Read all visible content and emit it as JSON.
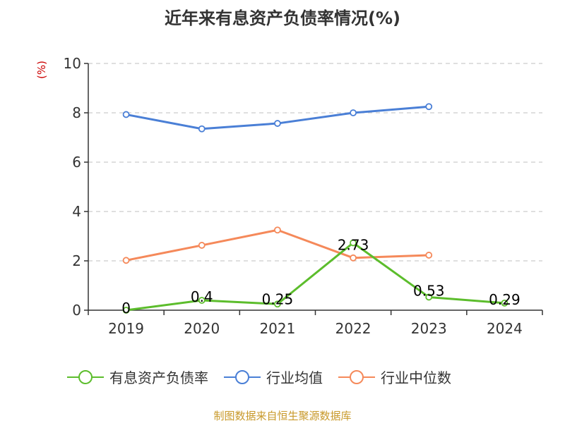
{
  "chart_data": {
    "type": "line",
    "title": "近年来有息资产负债率情况(%)",
    "ylabel": "(%)",
    "xlabel": "",
    "categories": [
      "2019",
      "2020",
      "2021",
      "2022",
      "2023",
      "2024"
    ],
    "ylim": [
      0,
      10
    ],
    "yticks": [
      0,
      2,
      4,
      6,
      8,
      10
    ],
    "grid": true,
    "legend_position": "bottom",
    "series": [
      {
        "name": "有息资产负债率",
        "color": "#5cbd2c",
        "values": [
          0,
          0.4,
          0.25,
          2.73,
          0.53,
          0.29
        ],
        "labels": [
          "0",
          "0.4",
          "0.25",
          "2.73",
          "0.53",
          "0.29"
        ]
      },
      {
        "name": "行业均值",
        "color": "#4a7fd6",
        "values": [
          7.93,
          7.35,
          7.57,
          8.0,
          8.25,
          null
        ]
      },
      {
        "name": "行业中位数",
        "color": "#f5895a",
        "values": [
          2.02,
          2.63,
          3.25,
          2.12,
          2.23,
          null
        ]
      }
    ]
  },
  "colors": {
    "unit": "#cc0000",
    "source": "#c8992a",
    "grid": "#cccccc",
    "axis": "#333333"
  },
  "footer": {
    "source": "制图数据来自恒生聚源数据库"
  }
}
